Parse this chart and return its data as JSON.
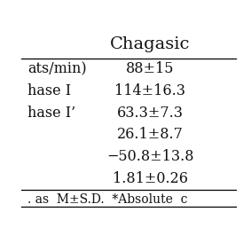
{
  "title": "Chagasic",
  "rows": [
    {
      "left": "ats/min)",
      "right": "88±15"
    },
    {
      "left": "hase I",
      "right": "114±16.3"
    },
    {
      "left": "hase I’",
      "right": "63.3±7.3"
    },
    {
      "left": "",
      "right": "26.1±8.7"
    },
    {
      "left": "",
      "right": "−50.8±13.8"
    },
    {
      "left": "",
      "right": "1.81±0.26"
    }
  ],
  "footer": ". as  M±S.D.  *Absolute  c",
  "bg_color": "#ffffff",
  "text_color": "#111111",
  "font_size": 11.5,
  "title_font_size": 14,
  "footer_font_size": 10
}
